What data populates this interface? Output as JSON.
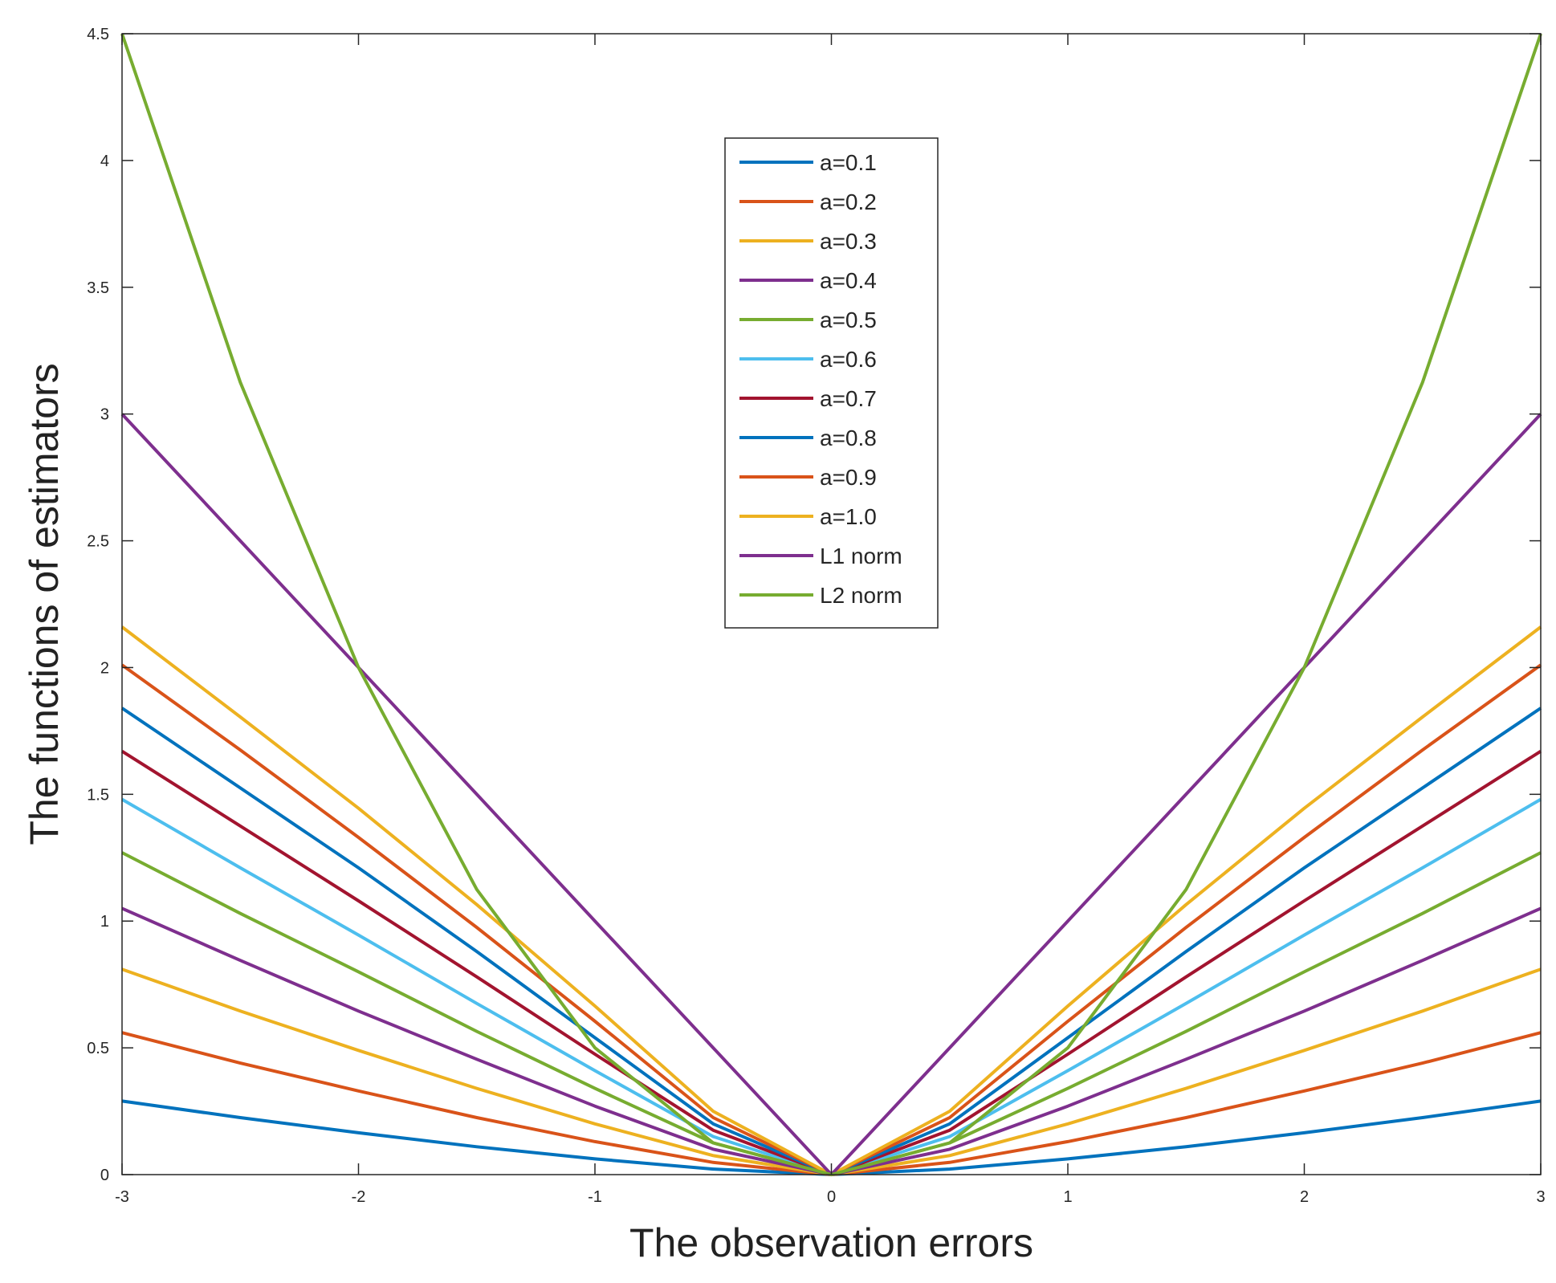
{
  "chart_data": {
    "type": "line",
    "title": "",
    "xlabel": "The observation errors",
    "ylabel": "The functions of estimators",
    "xlim": [
      -3,
      3
    ],
    "ylim": [
      0,
      4.5
    ],
    "x": [
      -3,
      -2.5,
      -2,
      -1.5,
      -1,
      -0.5,
      0,
      0.5,
      1,
      1.5,
      2,
      2.5,
      3
    ],
    "x_ticks": [
      -3,
      -2,
      -1,
      0,
      1,
      2,
      3
    ],
    "x_tick_labels": [
      "-3",
      "-2",
      "-1",
      "0",
      "1",
      "2",
      "3"
    ],
    "y_ticks": [
      0,
      0.5,
      1,
      1.5,
      2,
      2.5,
      3,
      3.5,
      4,
      4.5
    ],
    "y_tick_labels": [
      "0",
      "0.5",
      "1",
      "1.5",
      "2",
      "2.5",
      "3",
      "3.5",
      "4",
      "4.5"
    ],
    "grid": false,
    "legend_position": "top-center",
    "series": [
      {
        "name": "a=0.1",
        "color": "#0072BD",
        "values": [
          0.29,
          0.225,
          0.165,
          0.11,
          0.062,
          0.022,
          0,
          0.022,
          0.062,
          0.11,
          0.165,
          0.225,
          0.29
        ]
      },
      {
        "name": "a=0.2",
        "color": "#D95319",
        "values": [
          0.56,
          0.44,
          0.33,
          0.225,
          0.13,
          0.048,
          0,
          0.048,
          0.13,
          0.225,
          0.33,
          0.44,
          0.56
        ]
      },
      {
        "name": "a=0.3",
        "color": "#EDB120",
        "values": [
          0.81,
          0.645,
          0.49,
          0.34,
          0.2,
          0.075,
          0,
          0.075,
          0.2,
          0.34,
          0.49,
          0.645,
          0.81
        ]
      },
      {
        "name": "a=0.4",
        "color": "#7E2F8E",
        "values": [
          1.05,
          0.845,
          0.645,
          0.455,
          0.27,
          0.1,
          0,
          0.1,
          0.27,
          0.455,
          0.645,
          0.845,
          1.05
        ]
      },
      {
        "name": "a=0.5",
        "color": "#77AC30",
        "values": [
          1.27,
          1.03,
          0.8,
          0.565,
          0.34,
          0.125,
          0,
          0.125,
          0.34,
          0.565,
          0.8,
          1.03,
          1.27
        ]
      },
      {
        "name": "a=0.6",
        "color": "#4DBEEE",
        "values": [
          1.48,
          1.21,
          0.945,
          0.675,
          0.41,
          0.15,
          0,
          0.15,
          0.41,
          0.675,
          0.945,
          1.21,
          1.48
        ]
      },
      {
        "name": "a=0.7",
        "color": "#A2142F",
        "values": [
          1.67,
          1.375,
          1.08,
          0.78,
          0.475,
          0.175,
          0,
          0.175,
          0.475,
          0.78,
          1.08,
          1.375,
          1.67
        ]
      },
      {
        "name": "a=0.8",
        "color": "#0072BD",
        "values": [
          1.84,
          1.525,
          1.21,
          0.88,
          0.54,
          0.2,
          0,
          0.2,
          0.54,
          0.88,
          1.21,
          1.525,
          1.84
        ]
      },
      {
        "name": "a=0.9",
        "color": "#D95319",
        "values": [
          2.01,
          1.675,
          1.33,
          0.975,
          0.605,
          0.225,
          0,
          0.225,
          0.605,
          0.975,
          1.33,
          1.675,
          2.01
        ]
      },
      {
        "name": "a=1.0",
        "color": "#EDB120",
        "values": [
          2.16,
          1.805,
          1.445,
          1.065,
          0.665,
          0.25,
          0,
          0.25,
          0.665,
          1.065,
          1.445,
          1.805,
          2.16
        ]
      },
      {
        "name": "L1 norm",
        "color": "#7E2F8E",
        "values": [
          3,
          2.5,
          2,
          1.5,
          1,
          0.5,
          0,
          0.5,
          1,
          1.5,
          2,
          2.5,
          3
        ]
      },
      {
        "name": "L2 norm",
        "color": "#77AC30",
        "values": [
          4.5,
          3.125,
          2,
          1.125,
          0.5,
          0.125,
          0,
          0.125,
          0.5,
          1.125,
          2,
          3.125,
          4.5
        ]
      }
    ]
  }
}
